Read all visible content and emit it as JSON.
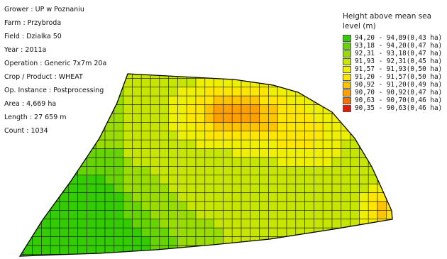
{
  "info": [
    {
      "label": "Grower",
      "value": "UP w Poznaniu"
    },
    {
      "label": "Farm",
      "value": "Przybroda"
    },
    {
      "label": "Field",
      "value": "Dzialka 50"
    },
    {
      "label": "Year",
      "value": "2011a"
    },
    {
      "label": "Operation",
      "value": "Generic 7x7m 20a"
    },
    {
      "label": "Crop / Product",
      "value": "WHEAT"
    },
    {
      "label": "Op. Instance",
      "value": "Postprocessing"
    },
    {
      "label": "Area",
      "value": "4,669 ha"
    },
    {
      "label": "Length",
      "value": "27 659 m"
    },
    {
      "label": "Count",
      "value": "1034"
    }
  ],
  "legend": {
    "title": "Height above mean sea level (m)",
    "classes": [
      {
        "range": "94,20 - 94,89",
        "area": "(0,43 ha)",
        "color": "#33cc00"
      },
      {
        "range": "93,18 - 94,20",
        "area": "(0,47 ha)",
        "color": "#66d400"
      },
      {
        "range": "92,31 - 93,18",
        "area": "(0,47 ha)",
        "color": "#99dd00"
      },
      {
        "range": "91,93 - 92,31",
        "area": "(0,45 ha)",
        "color": "#c6e600"
      },
      {
        "range": "91,57 - 91,93",
        "area": "(0,50 ha)",
        "color": "#eef000"
      },
      {
        "range": "91,20 - 91,57",
        "area": "(0,50 ha)",
        "color": "#ffe600"
      },
      {
        "range": "90,92 - 91,20",
        "area": "(0,49 ha)",
        "color": "#ffc400"
      },
      {
        "range": "90,70 - 90,92",
        "area": "(0,47 ha)",
        "color": "#ffa000"
      },
      {
        "range": "90,63 - 90,70",
        "area": "(0,46 ha)",
        "color": "#f27200"
      },
      {
        "range": "90,35 - 90,63",
        "area": "(0,46 ha)",
        "color": "#e51a00"
      }
    ]
  }
}
